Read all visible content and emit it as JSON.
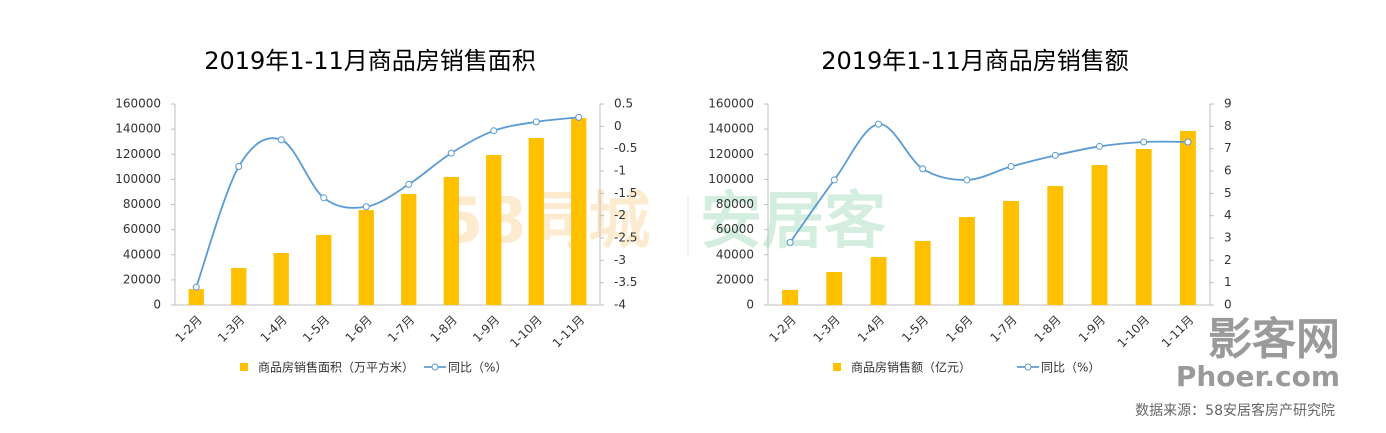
{
  "chart_data": [
    {
      "type": "bar-line",
      "title": "2019年1-11月商品房销售面积",
      "categories": [
        "1-2月",
        "1-3月",
        "1-4月",
        "1-5月",
        "1-6月",
        "1-7月",
        "1-8月",
        "1-9月",
        "1-10月",
        "1-11月"
      ],
      "series": [
        {
          "name": "商品房销售面积（万平方米）",
          "type": "bar",
          "color": "#ffc000",
          "values": [
            12700,
            29500,
            41400,
            55700,
            75600,
            88400,
            101900,
            119400,
            132900,
            148900
          ]
        },
        {
          "name": "同比（%）",
          "type": "line",
          "axis": "y2",
          "color": "#5b9bd5",
          "values": [
            -3.6,
            -0.9,
            -0.3,
            -1.6,
            -1.8,
            -1.3,
            -0.6,
            -0.1,
            0.1,
            0.2
          ]
        }
      ],
      "ylim": [
        0,
        160000
      ],
      "yticks": [
        0,
        20000,
        40000,
        60000,
        80000,
        100000,
        120000,
        140000,
        160000
      ],
      "y2lim": [
        -4,
        0.5
      ],
      "y2ticks": [
        -4,
        -3.5,
        -3,
        -2.5,
        -2,
        -1.5,
        -1,
        -0.5,
        0,
        0.5
      ],
      "grid": false,
      "legend": "bottom"
    },
    {
      "type": "bar-line",
      "title": "2019年1-11月商品房销售额",
      "categories": [
        "1-2月",
        "1-3月",
        "1-4月",
        "1-5月",
        "1-6月",
        "1-7月",
        "1-8月",
        "1-9月",
        "1-10月",
        "1-11月"
      ],
      "series": [
        {
          "name": "商品房销售额（亿元）",
          "type": "bar",
          "color": "#ffc000",
          "values": [
            12000,
            26300,
            38200,
            51000,
            70000,
            82800,
            94700,
            111400,
            124200,
            138500
          ]
        },
        {
          "name": "同比（%）",
          "type": "line",
          "axis": "y2",
          "color": "#5b9bd5",
          "values": [
            2.8,
            5.6,
            8.1,
            6.1,
            5.6,
            6.2,
            6.7,
            7.1,
            7.3,
            7.3
          ]
        }
      ],
      "ylim": [
        0,
        160000
      ],
      "yticks": [
        0,
        20000,
        40000,
        60000,
        80000,
        100000,
        120000,
        140000,
        160000
      ],
      "y2lim": [
        0,
        9
      ],
      "y2ticks": [
        0,
        1,
        2,
        3,
        4,
        5,
        6,
        7,
        8,
        9
      ],
      "grid": false,
      "legend": "bottom"
    }
  ],
  "watermark": {
    "left": "58同城",
    "right": "安居客",
    "site": "影客网",
    "url": "Phoer.com"
  },
  "source": "数据来源：58安居客房产研究院"
}
